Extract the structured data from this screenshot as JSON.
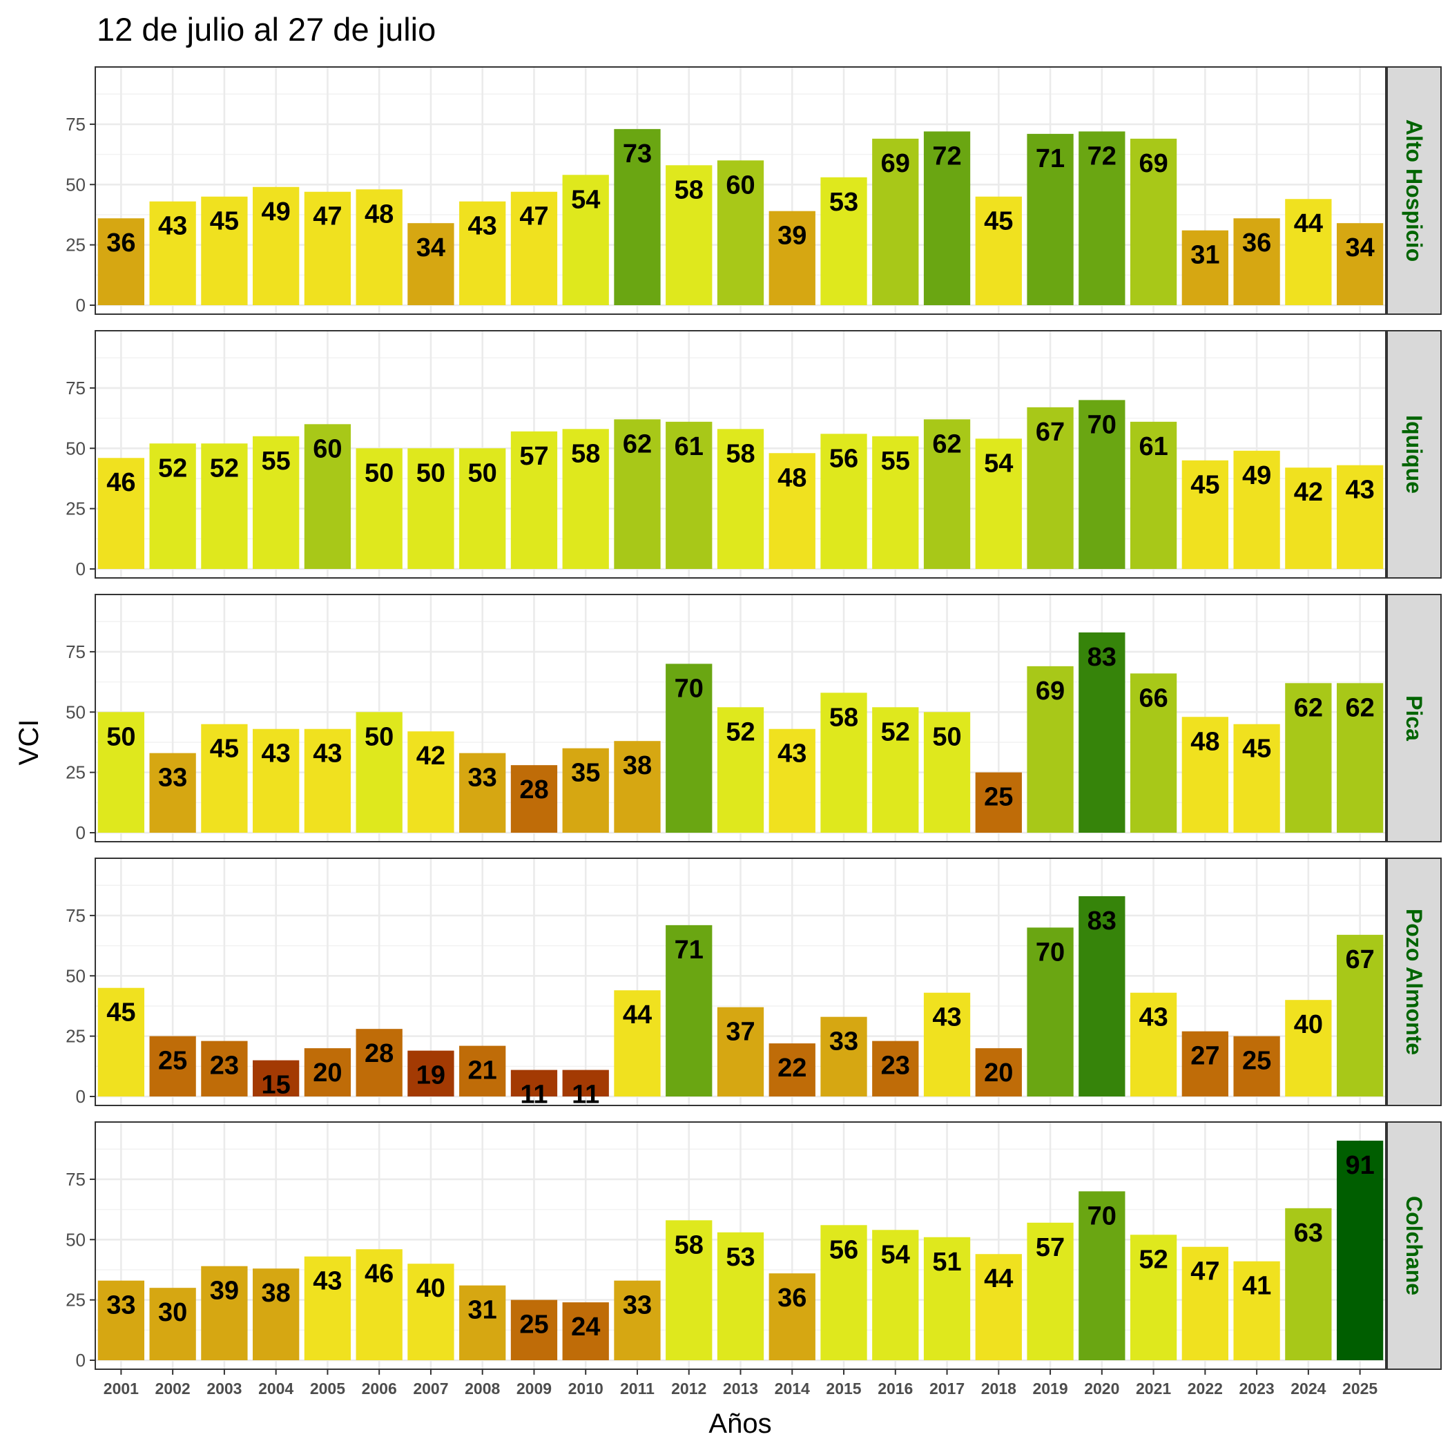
{
  "chart_data": {
    "type": "bar",
    "title": "12 de julio al 27 de julio",
    "xlabel": "Años",
    "ylabel": "VCI",
    "ylim": [
      0,
      95
    ],
    "yticks": [
      0,
      25,
      50,
      75
    ],
    "grid": true,
    "strip_color": "#006400",
    "categories": [
      "2001",
      "2002",
      "2003",
      "2004",
      "2005",
      "2006",
      "2007",
      "2008",
      "2009",
      "2010",
      "2011",
      "2012",
      "2013",
      "2014",
      "2015",
      "2016",
      "2017",
      "2018",
      "2019",
      "2020",
      "2021",
      "2022",
      "2023",
      "2024",
      "2025"
    ],
    "series": [
      {
        "name": "Alto Hospicio",
        "values": [
          36,
          43,
          45,
          49,
          47,
          48,
          34,
          43,
          47,
          54,
          73,
          58,
          60,
          39,
          53,
          69,
          72,
          45,
          71,
          72,
          69,
          31,
          36,
          44,
          34
        ]
      },
      {
        "name": "Iquique",
        "values": [
          46,
          52,
          52,
          55,
          60,
          50,
          50,
          50,
          57,
          58,
          62,
          61,
          58,
          48,
          56,
          55,
          62,
          54,
          67,
          70,
          61,
          45,
          49,
          42,
          43
        ]
      },
      {
        "name": "Pica",
        "values": [
          50,
          33,
          45,
          43,
          43,
          50,
          42,
          33,
          28,
          35,
          38,
          70,
          52,
          43,
          58,
          52,
          50,
          25,
          69,
          83,
          66,
          48,
          45,
          62,
          62
        ]
      },
      {
        "name": "Pozo Almonte",
        "values": [
          45,
          25,
          23,
          15,
          20,
          28,
          19,
          21,
          11,
          11,
          44,
          71,
          37,
          22,
          33,
          23,
          43,
          20,
          70,
          83,
          43,
          27,
          25,
          40,
          67
        ]
      },
      {
        "name": "Colchane",
        "values": [
          33,
          30,
          39,
          38,
          43,
          46,
          40,
          31,
          25,
          24,
          33,
          58,
          53,
          36,
          56,
          54,
          51,
          44,
          57,
          70,
          52,
          47,
          41,
          63,
          91
        ]
      }
    ],
    "color_scale": [
      {
        "min": 0,
        "max": 20,
        "color": "#a33a03"
      },
      {
        "min": 20,
        "max": 30,
        "color": "#bf6c08"
      },
      {
        "min": 30,
        "max": 40,
        "color": "#d6a712"
      },
      {
        "min": 40,
        "max": 50,
        "color": "#f0e11f"
      },
      {
        "min": 50,
        "max": 60,
        "color": "#dfe81d"
      },
      {
        "min": 60,
        "max": 70,
        "color": "#a8c818"
      },
      {
        "min": 70,
        "max": 80,
        "color": "#6aa612"
      },
      {
        "min": 80,
        "max": 90,
        "color": "#36840a"
      },
      {
        "min": 90,
        "max": 101,
        "color": "#005e00"
      }
    ]
  }
}
